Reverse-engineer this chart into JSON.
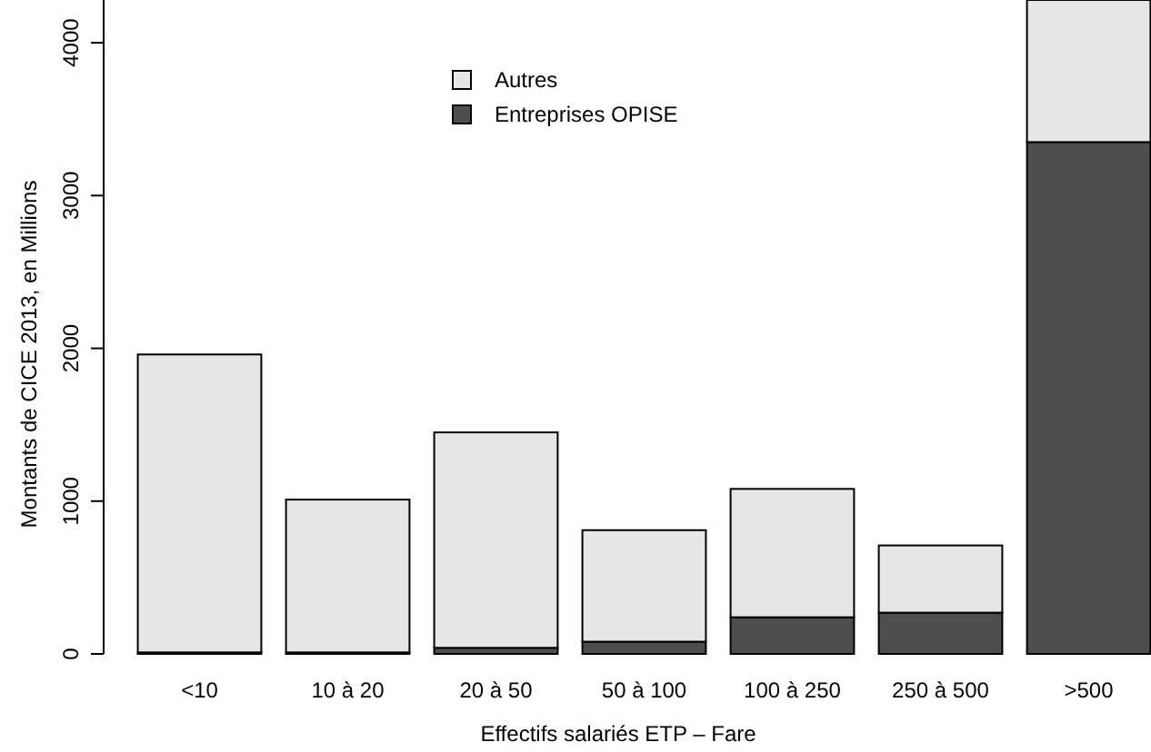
{
  "chart_data": {
    "type": "bar",
    "stacked": true,
    "categories": [
      "<10",
      "10 à 20",
      "20 à 50",
      "50 à 100",
      "100 à 250",
      "250 à 500",
      ">500"
    ],
    "series": [
      {
        "name": "Entreprises OPISE",
        "color": "#4d4d4d",
        "values": [
          10,
          10,
          40,
          80,
          240,
          270,
          3350
        ]
      },
      {
        "name": "Autres",
        "color": "#e6e6e6",
        "values": [
          1950,
          1000,
          1410,
          730,
          840,
          440,
          930
        ]
      }
    ],
    "ylim": [
      0,
      4280
    ],
    "yticks": [
      0,
      1000,
      2000,
      3000,
      4000
    ],
    "xlabel": "Effectifs salariés ETP – Fare",
    "ylabel": "Montants de CICE 2013, en Millions",
    "legend": "top"
  }
}
